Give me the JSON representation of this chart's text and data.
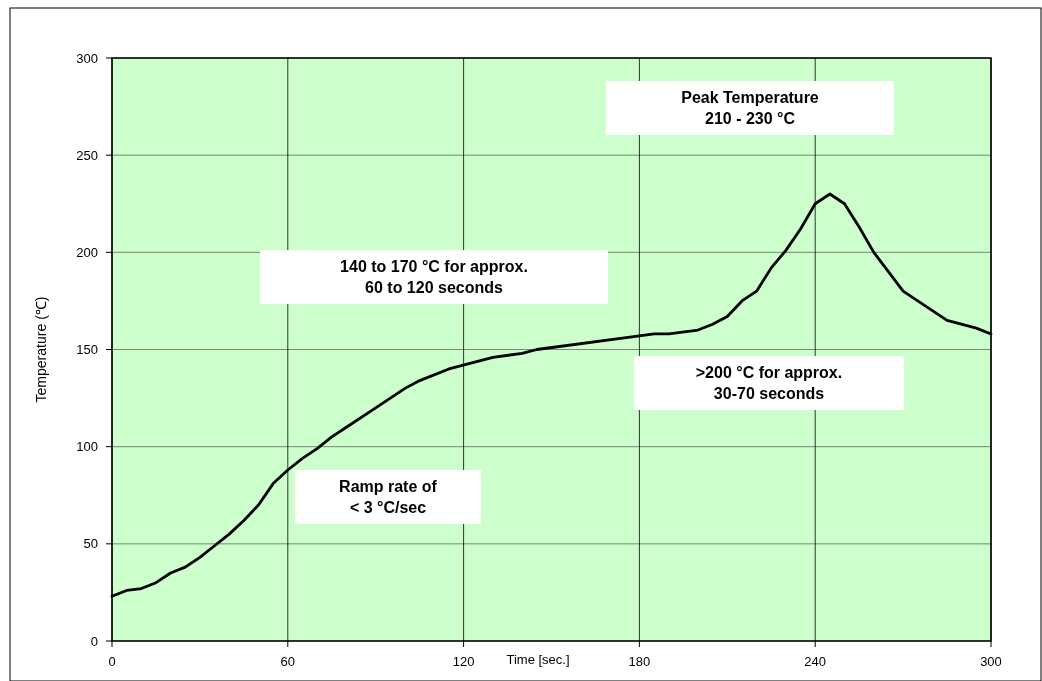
{
  "chart_data": {
    "type": "line",
    "xlabel": "Time [sec.]",
    "ylabel": "Temperature (℃)",
    "x": [
      0,
      5,
      10,
      15,
      20,
      25,
      30,
      35,
      40,
      45,
      50,
      55,
      60,
      65,
      70,
      75,
      80,
      90,
      100,
      105,
      115,
      130,
      140,
      145,
      180,
      185,
      190,
      200,
      205,
      210,
      215,
      220,
      225,
      230,
      235,
      240,
      245,
      250,
      255,
      260,
      270,
      285,
      295,
      300
    ],
    "series": [
      {
        "color": "#000000",
        "values": [
          23,
          26,
          27,
          30,
          35,
          38,
          43,
          49,
          55,
          62,
          70,
          81,
          88,
          94,
          99,
          105,
          110,
          120,
          130,
          134,
          140,
          146,
          148,
          150,
          157,
          158,
          158,
          160,
          163,
          167,
          175,
          180,
          192,
          201,
          212,
          225,
          230,
          225,
          213,
          200,
          180,
          165,
          161,
          158
        ]
      }
    ],
    "xlim": [
      0,
      300
    ],
    "xticks": [
      0,
      60,
      120,
      180,
      240,
      300
    ],
    "ylim": [
      0,
      300
    ],
    "yticks": [
      0,
      50,
      100,
      150,
      200,
      250,
      300
    ],
    "grid": true,
    "marker": "none",
    "line_style": "solid",
    "annotations": [
      "Peak Temperature\n210 - 230 °C",
      "140 to 170 °C for approx.\n60 to 120 seconds",
      ">200 °C for approx.\n30-70 seconds",
      "Ramp rate of\n< 3 °C/sec"
    ]
  }
}
